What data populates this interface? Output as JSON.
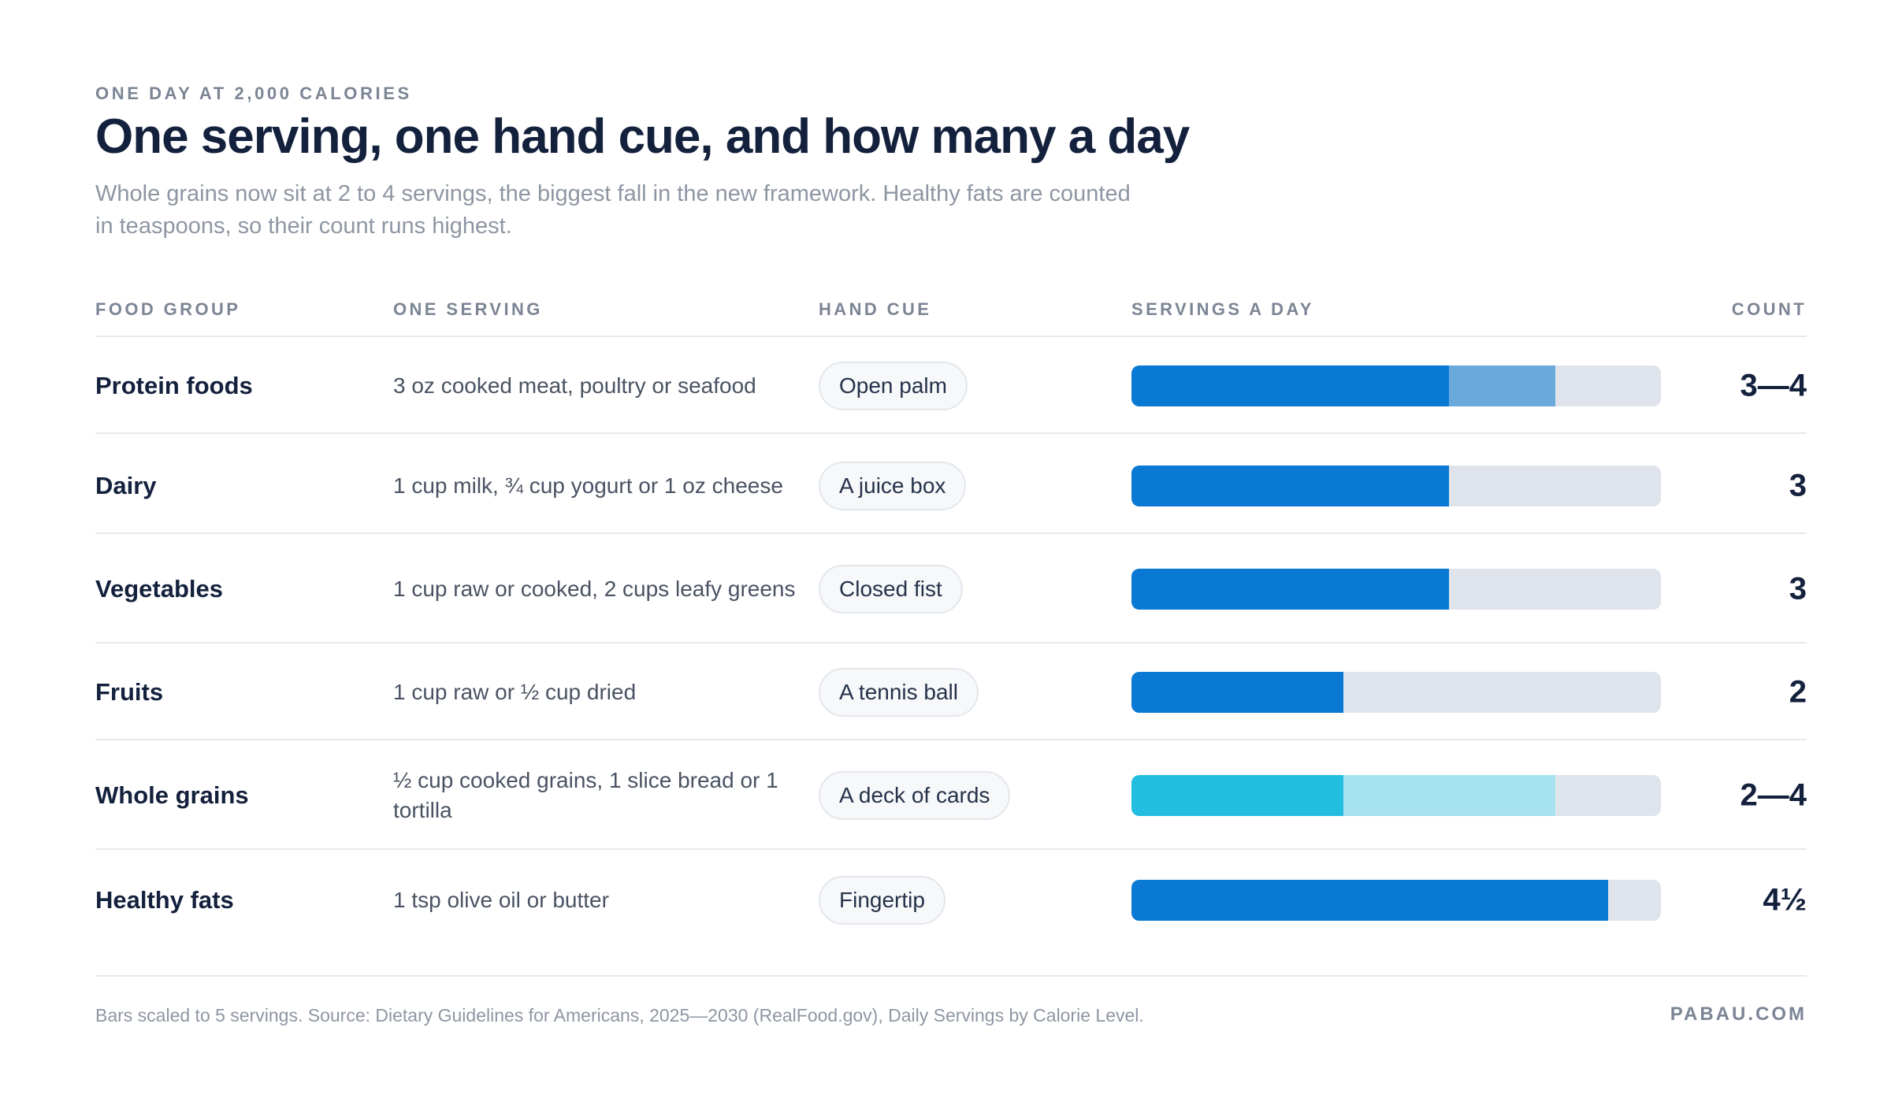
{
  "header": {
    "eyebrow": "ONE DAY AT 2,000 CALORIES",
    "title": "One serving, one hand cue, and how many a day",
    "subtitle": "Whole grains now sit at 2 to 4 servings, the biggest fall in the new framework. Healthy fats are counted in teaspoons, so their count runs highest."
  },
  "columns": {
    "food_group": "FOOD GROUP",
    "one_serving": "ONE SERVING",
    "hand_cue": "HAND CUE",
    "servings_a_day": "SERVINGS A DAY",
    "count": "COUNT"
  },
  "colors": {
    "primary": "#0979d3",
    "primary_light": "#6aaadb",
    "grain": "#24bde2",
    "grain_light": "#a7e2f0",
    "track": "#dfe3ec"
  },
  "chart_data": {
    "type": "bar",
    "orientation": "horizontal",
    "scale_max": 5,
    "categories": [
      "Protein foods",
      "Dairy",
      "Vegetables",
      "Fruits",
      "Whole grains",
      "Healthy fats"
    ],
    "rows": [
      {
        "group": "Protein foods",
        "serving": "3 oz cooked meat, poultry or seafood",
        "hand_cue": "Open palm",
        "min": 3,
        "max": 4,
        "count": "3—4",
        "color": "primary"
      },
      {
        "group": "Dairy",
        "serving": "1 cup milk, ¾ cup yogurt or 1 oz cheese",
        "hand_cue": "A juice box",
        "min": 3,
        "max": 3,
        "count": "3",
        "color": "primary"
      },
      {
        "group": "Vegetables",
        "serving": "1 cup raw or cooked, 2 cups leafy greens",
        "hand_cue": "Closed fist",
        "min": 3,
        "max": 3,
        "count": "3",
        "color": "primary"
      },
      {
        "group": "Fruits",
        "serving": "1 cup raw or ½ cup dried",
        "hand_cue": "A tennis ball",
        "min": 2,
        "max": 2,
        "count": "2",
        "color": "primary"
      },
      {
        "group": "Whole grains",
        "serving": "½ cup cooked grains, 1 slice bread or 1 tortilla",
        "hand_cue": "A deck of cards",
        "min": 2,
        "max": 4,
        "count": "2—4",
        "color": "grain"
      },
      {
        "group": "Healthy fats",
        "serving": "1 tsp olive oil or butter",
        "hand_cue": "Fingertip",
        "min": 4.5,
        "max": 4.5,
        "count": "4½",
        "color": "primary"
      }
    ]
  },
  "footer": {
    "note": "Bars scaled to 5 servings. Source: Dietary Guidelines for Americans, 2025—2030 (RealFood.gov), Daily Servings by Calorie Level.",
    "brand": "PABAU.COM"
  }
}
